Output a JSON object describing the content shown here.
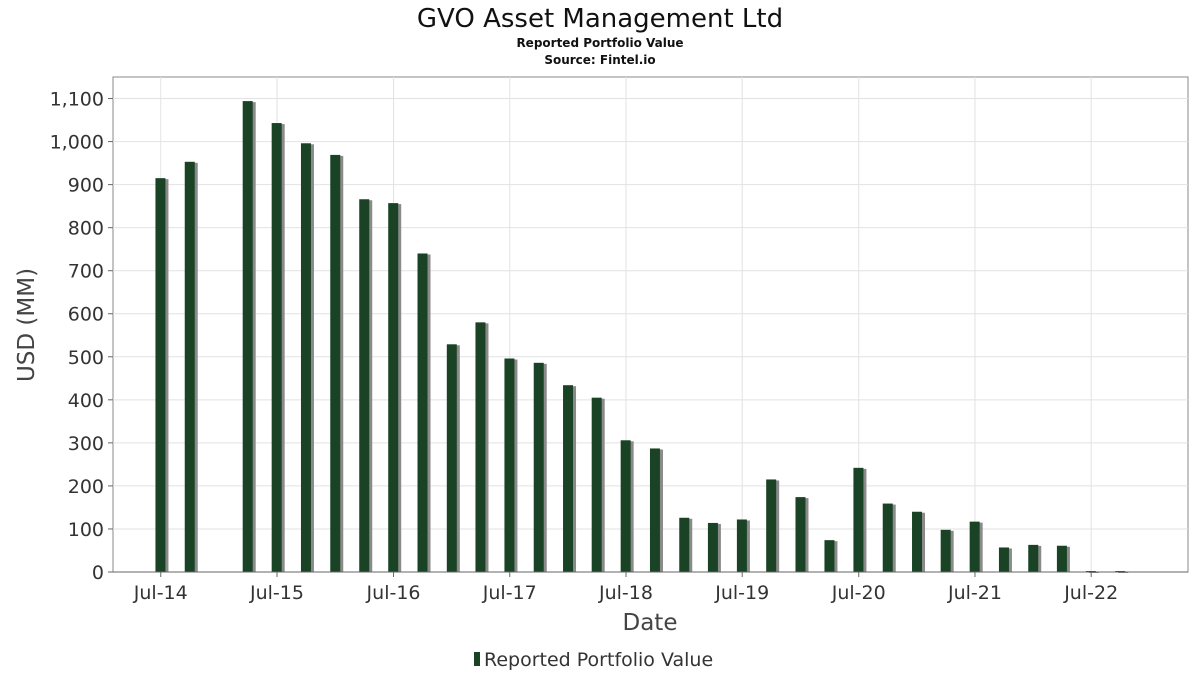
{
  "chart_data": {
    "type": "bar",
    "title": "GVO Asset Management Ltd",
    "subtitle": "Reported Portfolio Value",
    "source": "Source: Fintel.io",
    "xlabel": "Date",
    "ylabel": "USD (MM)",
    "ylim": [
      0,
      1150
    ],
    "yticks": [
      {
        "value": 0,
        "label": "0"
      },
      {
        "value": 100,
        "label": "100"
      },
      {
        "value": 200,
        "label": "200"
      },
      {
        "value": 300,
        "label": "300"
      },
      {
        "value": 400,
        "label": "400"
      },
      {
        "value": 500,
        "label": "500"
      },
      {
        "value": 600,
        "label": "600"
      },
      {
        "value": 700,
        "label": "700"
      },
      {
        "value": 800,
        "label": "800"
      },
      {
        "value": 900,
        "label": "900"
      },
      {
        "value": 1000,
        "label": "1,000"
      },
      {
        "value": 1100,
        "label": "1,100"
      }
    ],
    "xrange": [
      "2014-02-01",
      "2023-05-01"
    ],
    "xticks": [
      {
        "date": "2014-07-01",
        "label": "Jul-14"
      },
      {
        "date": "2015-07-01",
        "label": "Jul-15"
      },
      {
        "date": "2016-07-01",
        "label": "Jul-16"
      },
      {
        "date": "2017-07-01",
        "label": "Jul-17"
      },
      {
        "date": "2018-07-01",
        "label": "Jul-18"
      },
      {
        "date": "2019-07-01",
        "label": "Jul-19"
      },
      {
        "date": "2020-07-01",
        "label": "Jul-20"
      },
      {
        "date": "2021-07-01",
        "label": "Jul-21"
      },
      {
        "date": "2022-07-01",
        "label": "Jul-22"
      }
    ],
    "grid": true,
    "legend": {
      "position": "bottom",
      "entries": [
        "Reported Portfolio Value"
      ]
    },
    "colors": {
      "bar": "#1a4325",
      "shadow": "#8a8a8a",
      "grid": "#e2e2e2",
      "frame": "#888888"
    },
    "series": [
      {
        "name": "Reported Portfolio Value",
        "x": [
          "2014-06-30",
          "2014-09-30",
          "2015-03-31",
          "2015-06-30",
          "2015-09-30",
          "2015-12-31",
          "2016-03-31",
          "2016-06-30",
          "2016-09-30",
          "2016-12-31",
          "2017-03-31",
          "2017-06-30",
          "2017-09-30",
          "2017-12-31",
          "2018-03-31",
          "2018-06-30",
          "2018-09-30",
          "2018-12-31",
          "2019-03-31",
          "2019-06-30",
          "2019-09-30",
          "2019-12-31",
          "2020-03-31",
          "2020-06-30",
          "2020-09-30",
          "2020-12-31",
          "2021-03-31",
          "2021-06-30",
          "2021-09-30",
          "2021-12-31",
          "2022-03-31",
          "2022-06-30",
          "2022-09-30"
        ],
        "values": [
          915,
          953,
          1094,
          1043,
          996,
          969,
          866,
          857,
          740,
          529,
          580,
          496,
          486,
          434,
          405,
          306,
          287,
          126,
          114,
          122,
          215,
          174,
          74,
          242,
          159,
          140,
          98,
          117,
          57,
          63,
          61,
          2,
          2
        ]
      }
    ]
  }
}
